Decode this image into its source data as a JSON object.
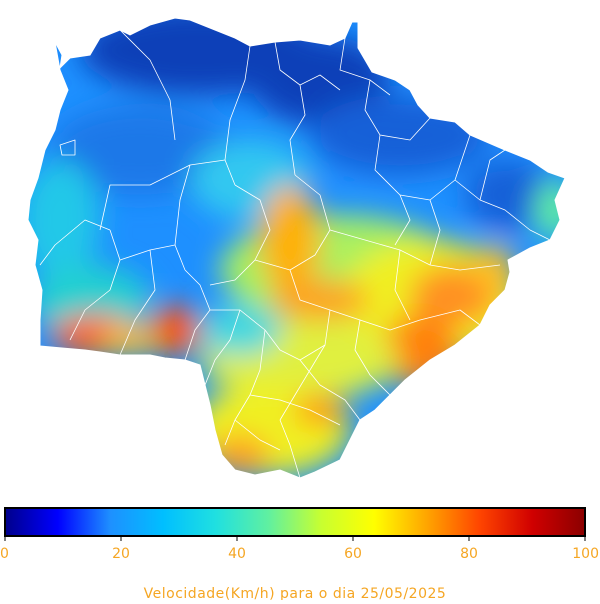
{
  "title_caption": "Velocidade(Km/h) para o dia 25/05/2025",
  "colorbar": {
    "min": 0,
    "max": 100,
    "ticks": [
      "0",
      "20",
      "40",
      "60",
      "80",
      "100"
    ],
    "stops": [
      "#00008b",
      "#0000ff",
      "#1e90ff",
      "#00bfff",
      "#20e0e0",
      "#60f0a0",
      "#c8ff30",
      "#ffff00",
      "#ffa500",
      "#ff4500",
      "#d00000",
      "#8b0000"
    ],
    "label_color": "#f5a623"
  },
  "map": {
    "region": "Mato Grosso do Sul",
    "border_color": "#ffffff"
  }
}
